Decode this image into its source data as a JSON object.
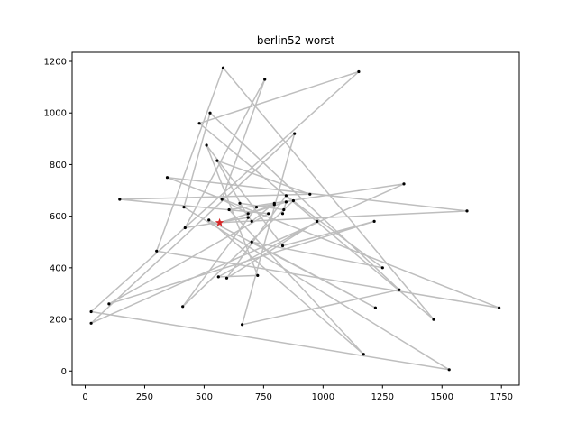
{
  "chart_data": {
    "type": "line",
    "title": "berlin52 worst",
    "xlabel": "",
    "ylabel": "",
    "xlim": [
      -55,
      1825
    ],
    "ylim": [
      -55,
      1235
    ],
    "xticks": [
      0,
      250,
      500,
      750,
      1000,
      1250,
      1500,
      1750
    ],
    "yticks": [
      0,
      200,
      400,
      600,
      800,
      1000,
      1200
    ],
    "grid": false,
    "colors": {
      "route": "#bebebe",
      "city": "#000000",
      "start": "#d62728"
    },
    "start": {
      "x": 565,
      "y": 575
    },
    "route_x": [
      565,
      1605,
      345,
      1740,
      300,
      580,
      1465,
      480,
      1150,
      25,
      1530,
      415,
      525,
      1320,
      660,
      880,
      25,
      1340,
      605,
      1170,
      520,
      1220,
      700,
      1250,
      845,
      595,
      975,
      560,
      725,
      510,
      830,
      1215,
      100,
      770,
      145,
      945,
      555,
      685,
      420,
      755,
      575,
      685,
      795,
      720,
      410,
      875,
      795,
      700,
      650,
      835,
      830,
      845,
      565
    ],
    "route_y": [
      575,
      620,
      750,
      245,
      465,
      1175,
      200,
      960,
      1160,
      230,
      5,
      635,
      1000,
      315,
      180,
      920,
      185,
      725,
      625,
      65,
      585,
      245,
      500,
      400,
      680,
      360,
      580,
      365,
      370,
      875,
      485,
      580,
      260,
      610,
      665,
      685,
      815,
      595,
      555,
      1130,
      665,
      610,
      645,
      635,
      250,
      660,
      650,
      580,
      650,
      625,
      610,
      655,
      575
    ],
    "points_x": [
      565,
      1605,
      345,
      1740,
      300,
      580,
      1465,
      480,
      1150,
      25,
      1530,
      415,
      525,
      1320,
      660,
      880,
      25,
      1340,
      605,
      1170,
      520,
      1220,
      700,
      1250,
      845,
      595,
      975,
      560,
      725,
      510,
      830,
      1215,
      100,
      770,
      145,
      945,
      555,
      685,
      420,
      755,
      575,
      685,
      795,
      720,
      410,
      875,
      795,
      700,
      650,
      835,
      830,
      845
    ],
    "points_y": [
      575,
      620,
      750,
      245,
      465,
      1175,
      200,
      960,
      1160,
      230,
      5,
      635,
      1000,
      315,
      180,
      920,
      185,
      725,
      625,
      65,
      585,
      245,
      500,
      400,
      680,
      360,
      580,
      365,
      370,
      875,
      485,
      580,
      260,
      610,
      665,
      685,
      815,
      595,
      555,
      1130,
      665,
      610,
      645,
      635,
      250,
      660,
      650,
      580,
      650,
      625,
      610,
      655
    ]
  }
}
